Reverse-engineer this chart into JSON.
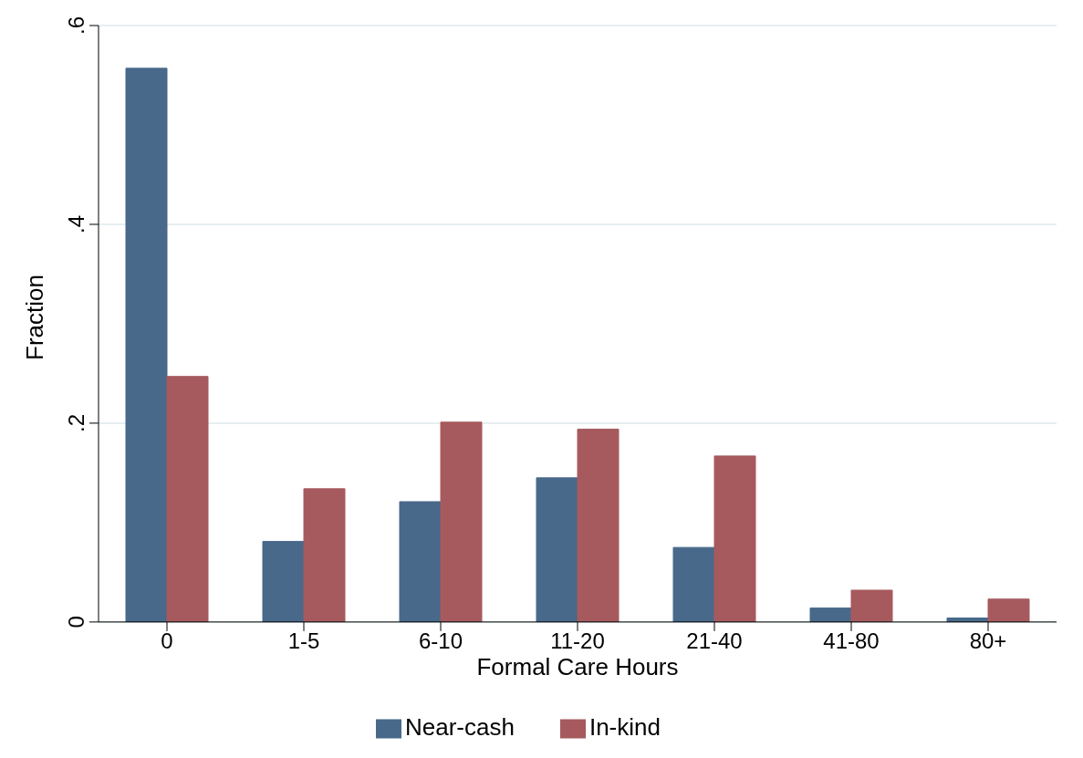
{
  "chart_data": {
    "type": "bar",
    "xlabel": "Formal Care Hours",
    "ylabel": "Fraction",
    "categories": [
      "0",
      "1-5",
      "6-10",
      "11-20",
      "21-40",
      "41-80",
      "80+"
    ],
    "series": [
      {
        "name": "Near-cash",
        "color": "#48698a",
        "values": [
          0.557,
          0.081,
          0.121,
          0.145,
          0.075,
          0.014,
          0.004
        ]
      },
      {
        "name": "In-kind",
        "color": "#a65a5e",
        "values": [
          0.247,
          0.134,
          0.201,
          0.194,
          0.167,
          0.032,
          0.023
        ]
      }
    ],
    "ylim": [
      0,
      0.6
    ],
    "yticks": [
      {
        "value": 0,
        "label": "0"
      },
      {
        "value": 0.2,
        "label": ".2"
      },
      {
        "value": 0.4,
        "label": ".4"
      },
      {
        "value": 0.6,
        "label": ".6"
      }
    ],
    "grid": "y",
    "legend": "bottom"
  }
}
